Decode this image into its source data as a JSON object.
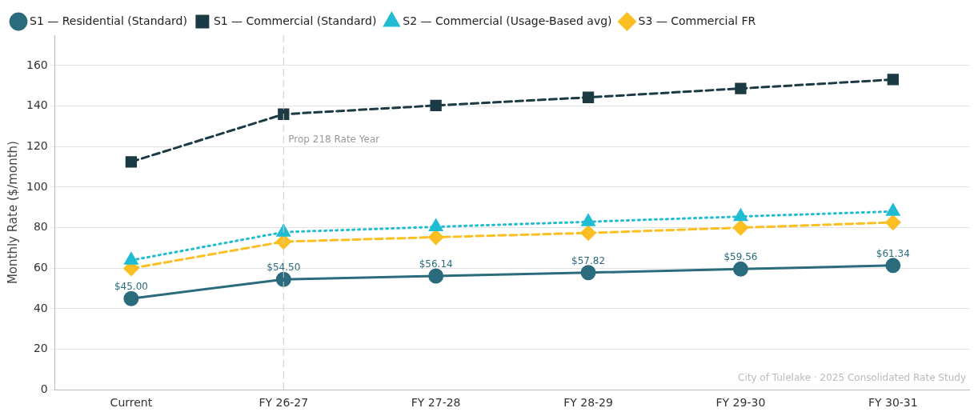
{
  "chart_data": {
    "type": "line",
    "ylabel": "Monthly Rate ($/month)",
    "categories": [
      "Current",
      "FY 26-27",
      "FY 27-28",
      "FY 28-29",
      "FY 29-30",
      "FY 30-31"
    ],
    "series": [
      {
        "name": "S1 — Residential (Standard)",
        "color": "#2a6b7c",
        "marker": "circle",
        "line_style": "solid",
        "values": [
          45.0,
          54.5,
          56.14,
          57.82,
          59.56,
          61.34
        ],
        "value_labels": [
          "$45.00",
          "$54.50",
          "$56.14",
          "$57.82",
          "$59.56",
          "$61.34"
        ]
      },
      {
        "name": "S1 — Commercial (Standard)",
        "color": "#1b3a44",
        "marker": "square",
        "line_style": "dashed",
        "values": [
          112.5,
          136,
          140.3,
          144.3,
          148.7,
          153.1
        ]
      },
      {
        "name": "S2 — Commercial (Usage-Based avg)",
        "color": "#1fbcd2",
        "marker": "triangle",
        "line_style": "dotted",
        "values": [
          63.9,
          77.8,
          80.4,
          82.9,
          85.5,
          88.0
        ]
      },
      {
        "name": "S3 — Commercial FR",
        "color": "#fbbf24",
        "marker": "diamond",
        "line_style": "dashed",
        "values": [
          59.9,
          73.1,
          75.3,
          77.4,
          80.0,
          82.6
        ]
      }
    ],
    "ylim": [
      0,
      175
    ],
    "yticks": [
      0,
      20,
      40,
      60,
      80,
      100,
      120,
      140,
      160
    ],
    "grid": "y",
    "legend": "top left",
    "ref_lines": [
      {
        "axis": "x",
        "value": "FY 26-27",
        "label": "Prop 218 Rate Year",
        "color": "#cccccc",
        "line_style": "dashed"
      }
    ],
    "annotations": [
      "City of Tulelake · 2025 Consolidated Rate Study"
    ]
  }
}
